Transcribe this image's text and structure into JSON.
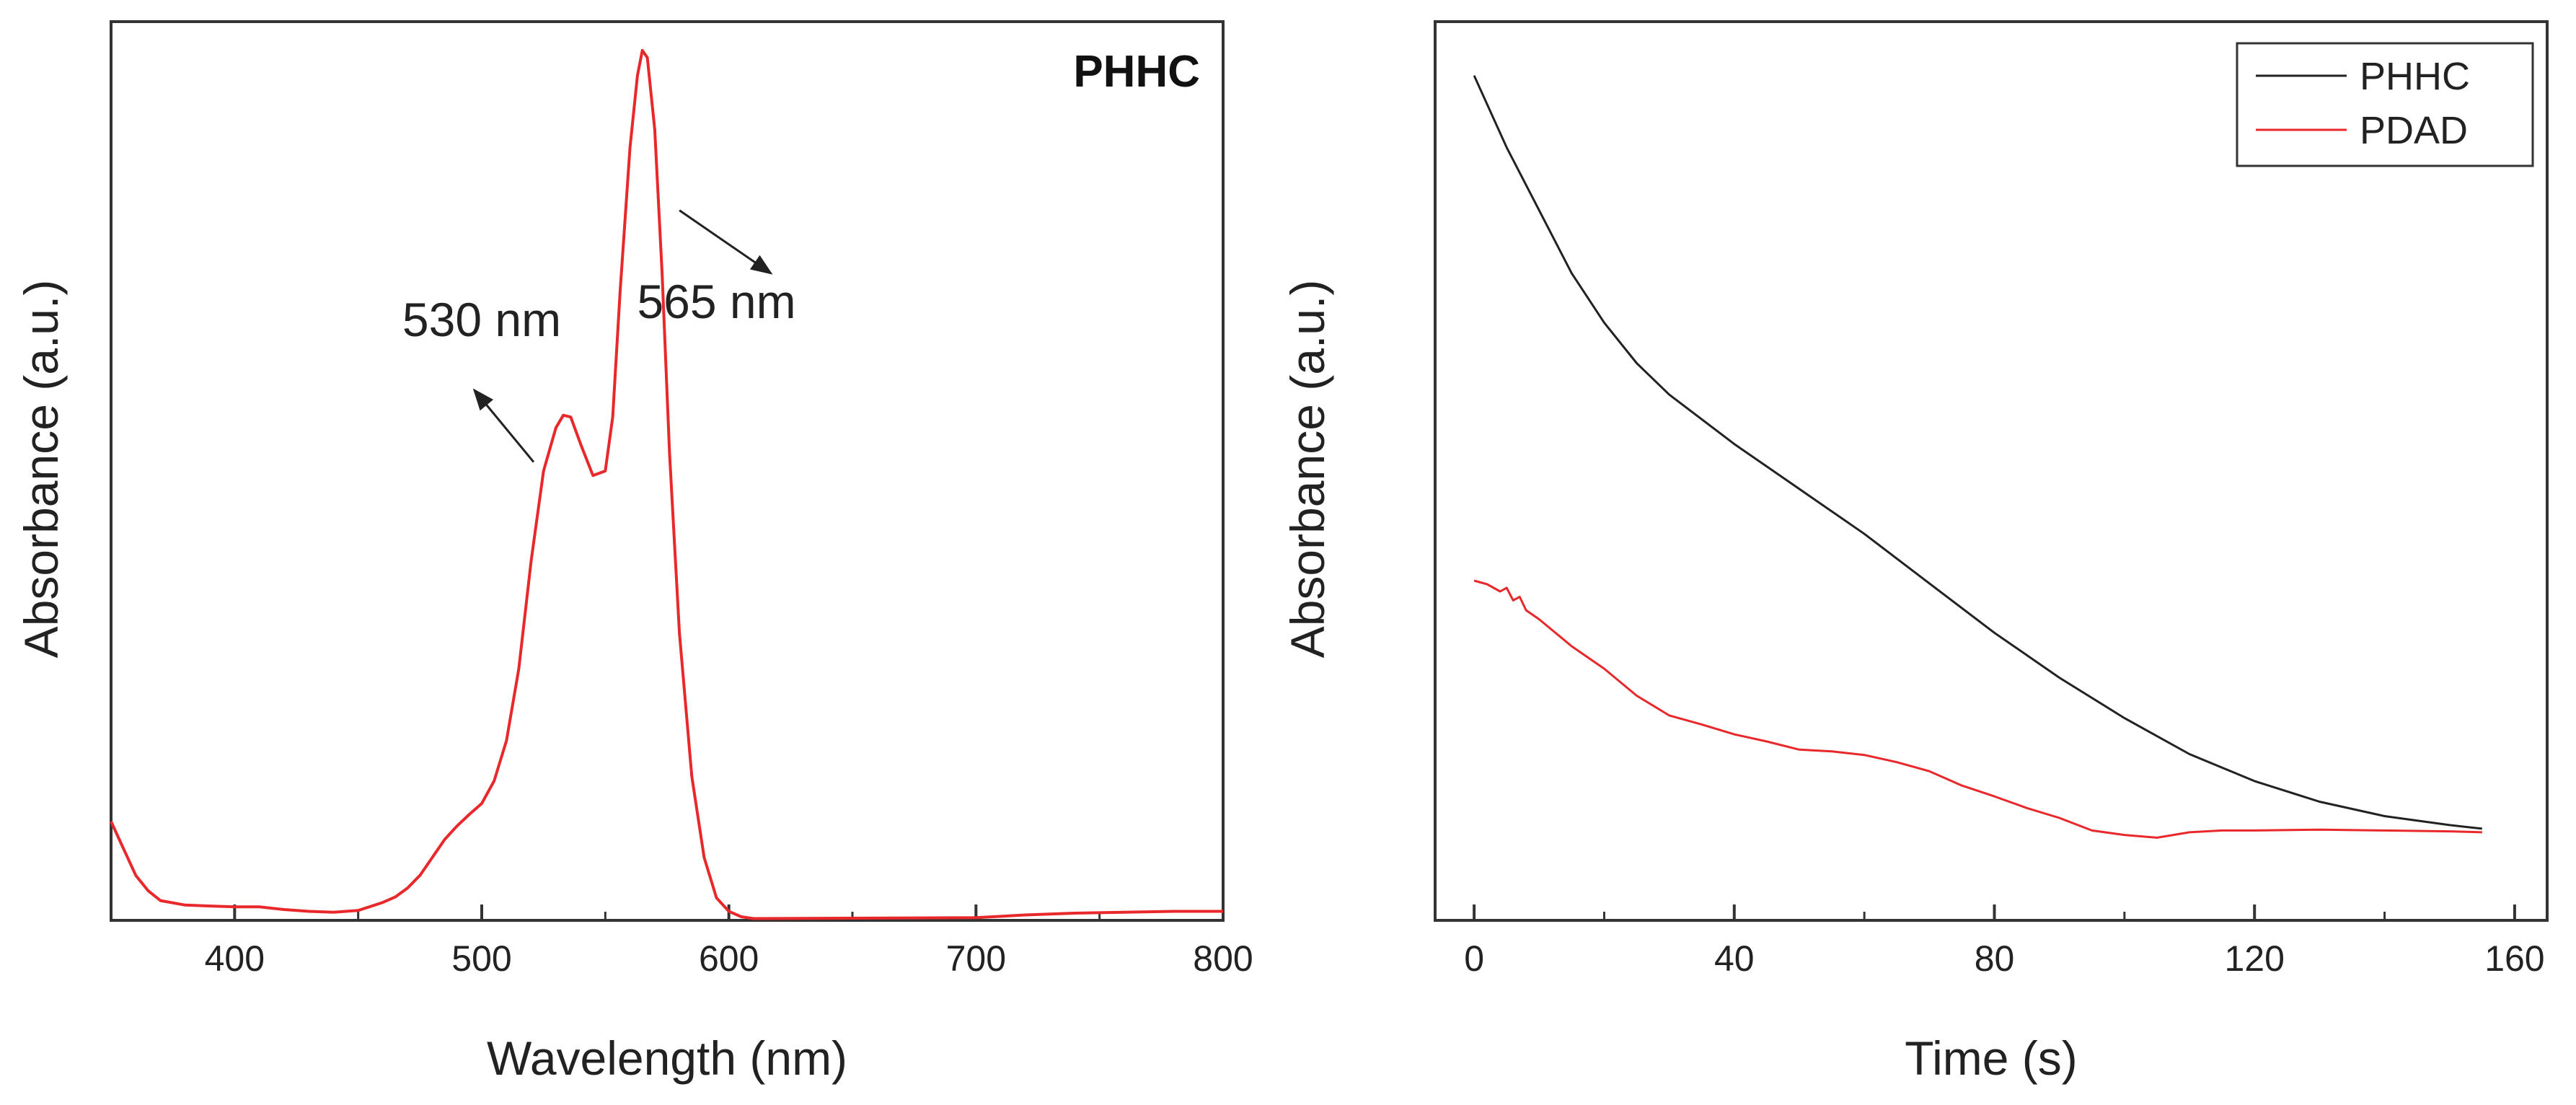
{
  "chart_data": [
    {
      "type": "line",
      "panel_tag": "PHHC",
      "xlabel": "Wavelength (nm)",
      "ylabel": "Absorbance (a.u.)",
      "xlim": [
        350,
        800
      ],
      "ylim": [
        0,
        1
      ],
      "x_ticks": [
        "400",
        "500",
        "600",
        "700",
        "800"
      ],
      "x_tick_values": [
        400,
        500,
        600,
        700,
        800
      ],
      "y_ticks": [],
      "series": [
        {
          "name": "PHHC",
          "color": "#e8282a",
          "x": [
            350,
            355,
            360,
            365,
            370,
            380,
            390,
            400,
            410,
            420,
            430,
            440,
            450,
            460,
            465,
            470,
            475,
            480,
            485,
            490,
            495,
            500,
            505,
            510,
            515,
            520,
            525,
            530,
            533,
            536,
            540,
            545,
            550,
            553,
            556,
            560,
            563,
            565,
            567,
            570,
            573,
            576,
            580,
            585,
            590,
            595,
            600,
            605,
            610,
            700,
            720,
            740,
            760,
            780,
            800
          ],
          "y": [
            0.11,
            0.08,
            0.05,
            0.033,
            0.022,
            0.017,
            0.016,
            0.015,
            0.015,
            0.012,
            0.01,
            0.009,
            0.011,
            0.02,
            0.026,
            0.036,
            0.05,
            0.07,
            0.09,
            0.105,
            0.118,
            0.13,
            0.155,
            0.2,
            0.28,
            0.4,
            0.5,
            0.548,
            0.562,
            0.56,
            0.53,
            0.495,
            0.5,
            0.56,
            0.7,
            0.86,
            0.94,
            0.968,
            0.96,
            0.88,
            0.72,
            0.52,
            0.32,
            0.16,
            0.07,
            0.025,
            0.01,
            0.004,
            0.002,
            0.003,
            0.006,
            0.008,
            0.009,
            0.01,
            0.01
          ]
        }
      ],
      "annotations": [
        {
          "text": "530 nm",
          "x": 500,
          "y": 0.65,
          "arrow_from": [
            521,
            0.51
          ],
          "arrow_to": [
            497,
            0.59
          ]
        },
        {
          "text": "565 nm",
          "x": 595,
          "y": 0.67,
          "arrow_from": [
            580,
            0.79
          ],
          "arrow_to": [
            617,
            0.72
          ]
        }
      ]
    },
    {
      "type": "line",
      "xlabel": "Time (s)",
      "ylabel": "Absorbance (a.u.)",
      "xlim": [
        -6,
        165
      ],
      "ylim": [
        0,
        1
      ],
      "x_ticks": [
        "0",
        "40",
        "80",
        "120",
        "160"
      ],
      "x_tick_values": [
        0,
        40,
        80,
        120,
        160
      ],
      "y_ticks": [],
      "legend": "top-right",
      "series": [
        {
          "name": "PHHC",
          "color": "#222222",
          "x": [
            0,
            5,
            10,
            15,
            20,
            25,
            30,
            40,
            50,
            60,
            70,
            80,
            90,
            100,
            110,
            120,
            130,
            140,
            150,
            155
          ],
          "y": [
            0.94,
            0.86,
            0.79,
            0.72,
            0.665,
            0.62,
            0.585,
            0.53,
            0.48,
            0.43,
            0.375,
            0.32,
            0.27,
            0.225,
            0.185,
            0.155,
            0.132,
            0.116,
            0.106,
            0.102
          ]
        },
        {
          "name": "PDAD",
          "color": "#e8282a",
          "x": [
            0,
            2,
            4,
            5,
            6,
            7,
            8,
            10,
            15,
            20,
            25,
            30,
            35,
            40,
            45,
            50,
            55,
            60,
            65,
            70,
            75,
            80,
            85,
            90,
            95,
            100,
            105,
            110,
            115,
            120,
            130,
            140,
            150,
            155
          ],
          "y": [
            0.378,
            0.374,
            0.366,
            0.37,
            0.356,
            0.36,
            0.345,
            0.335,
            0.305,
            0.28,
            0.25,
            0.228,
            0.218,
            0.207,
            0.199,
            0.19,
            0.188,
            0.184,
            0.176,
            0.166,
            0.15,
            0.138,
            0.125,
            0.114,
            0.1,
            0.095,
            0.092,
            0.098,
            0.1,
            0.1,
            0.101,
            0.1,
            0.099,
            0.098
          ]
        }
      ]
    }
  ]
}
